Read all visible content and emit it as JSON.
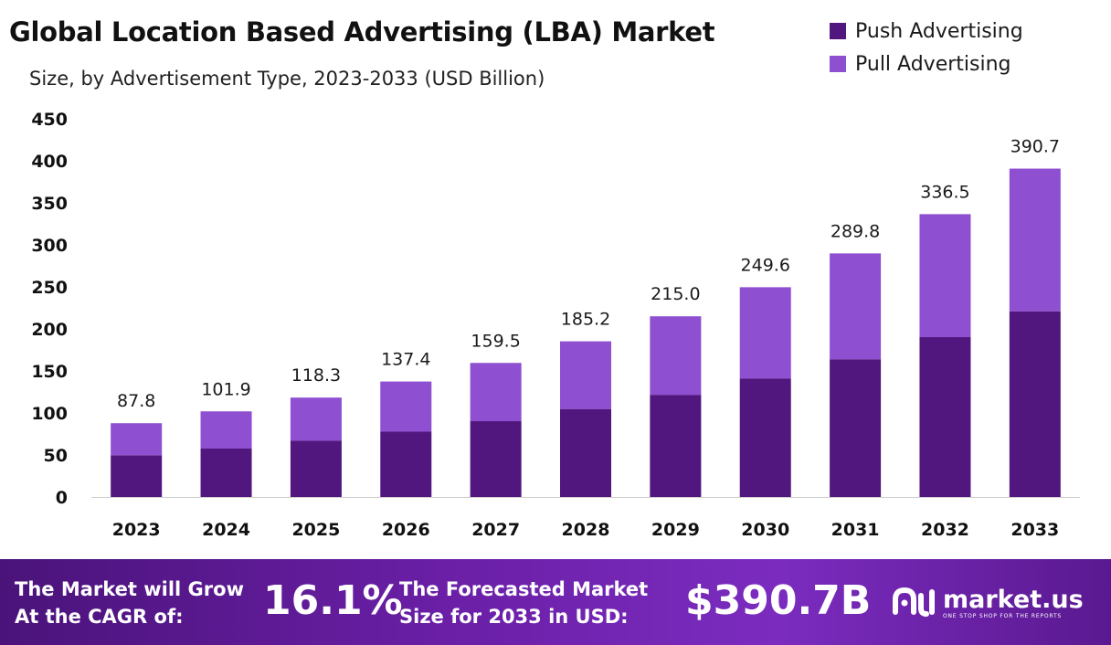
{
  "chart_data": {
    "type": "bar",
    "stacked": true,
    "title": "Global Location Based Advertising (LBA) Market",
    "subtitle": "Size, by Advertisement Type, 2023-2033 (USD Billion)",
    "categories": [
      "2023",
      "2024",
      "2025",
      "2026",
      "2027",
      "2028",
      "2029",
      "2030",
      "2031",
      "2032",
      "2033"
    ],
    "series": [
      {
        "name": "Push Advertising",
        "color": "#52167f",
        "values": [
          49.7,
          57.6,
          66.9,
          77.7,
          90.2,
          104.7,
          121.6,
          141.1,
          163.9,
          190.2,
          220.9
        ]
      },
      {
        "name": "Pull Advertising",
        "color": "#8e4fd0",
        "values": [
          38.1,
          44.3,
          51.4,
          59.7,
          69.3,
          80.5,
          93.4,
          108.5,
          125.9,
          146.3,
          169.8
        ]
      }
    ],
    "totals": [
      "87.8",
      "101.9",
      "118.3",
      "137.4",
      "159.5",
      "185.2",
      "215.0",
      "249.6",
      "289.8",
      "336.5",
      "390.7"
    ],
    "ylim": [
      0,
      450
    ],
    "yticks": [
      0,
      50,
      100,
      150,
      200,
      250,
      300,
      350,
      400,
      450
    ],
    "legend_position": "top-right",
    "grid": false
  },
  "footer": {
    "cagr_line1": "The Market will Grow",
    "cagr_line2": "At the CAGR of:",
    "cagr_value": "16.1%",
    "forecast_line1": "The Forecasted Market",
    "forecast_line2": "Size for 2033 in USD:",
    "forecast_value": "$390.7B",
    "logo_name": "market.us",
    "logo_tagline": "ONE STOP SHOP FOR THE REPORTS"
  }
}
